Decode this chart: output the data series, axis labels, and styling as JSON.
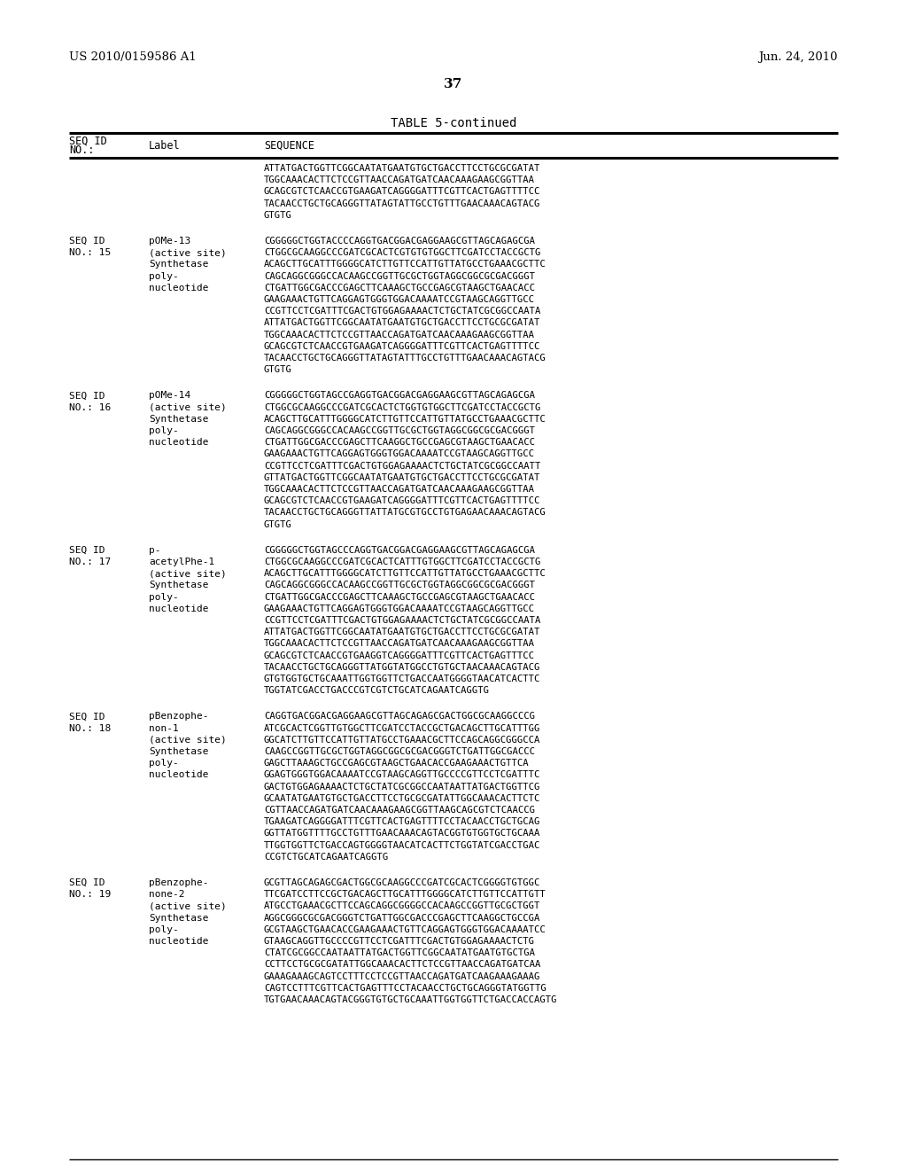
{
  "background_color": "#ffffff",
  "header_left": "US 2010/0159586 A1",
  "header_right": "Jun. 24, 2010",
  "page_number": "37",
  "table_title": "TABLE 5-continued",
  "entries": [
    {
      "seq_id": "",
      "no": "",
      "label_lines": [],
      "sequence_lines": [
        "ATTATGACTGGTTCGGCAATATGAATGTGCTGACCTTCCTGCGCGATAT",
        "TGGCAAACACTTCTCCGTTAACCAGATGATCAACAAAGAAGCGGTTAA",
        "GCAGCGTCTCAACCGTGAAGATCAGGGGATTTCGTTCACTGAGTTTTCC",
        "TACAACCTGCTGCAGGGTTATAGTATTGCCTGTTTGAACAAACAGTACG",
        "GTGTG"
      ]
    },
    {
      "seq_id": "SEQ ID",
      "no": "NO.: 15",
      "label_lines": [
        "pOMe-13",
        "(active site)",
        "Synthetase",
        "poly-",
        "nucleotide"
      ],
      "sequence_lines": [
        "CGGGGGCTGGTACCCCAGGTGACGGACGAGGAAGCGTTAGCAGAGCGA",
        "CTGGCGCAAGGCCCGATCGCACTCGTGTGTGGCTTCGATCCTACCGCTG",
        "ACAGCTTGCATTTGGGGCATCTTGTTCCATTGTTATGCCTGAAACGCTTC",
        "CAGCAGGCGGGCCACAAGCCGGTTGCGCTGGTAGGCGGCGCGACGGGT",
        "CTGATTGGCGACCCGAGCTTCAAAGCTGCCGAGCGTAAGCTGAACACC",
        "GAAGAAACTGTTCAGGAGTGGGTGGACAAAATCCGTAAGCAGGTTGCC",
        "CCGTTCCTCGATTTCGACTGTGGAGAAAACTCTGCTATCGCGGCCAATA",
        "ATTATGACTGGTTCGGCAATATGAATGTGCTGACCTTCCTGCGCGATAT",
        "TGGCAAACACTTCTCCGTTAACCAGATGATCAACAAAGAAGCGGTTAA",
        "GCAGCGTCTCAACCGTGAAGATCAGGGGATTTCGTTCACTGAGTTTTCC",
        "TACAACCTGCTGCAGGGTTATAGTATTTGCCTGTTTGAACAAACAGTACG",
        "GTGTG"
      ]
    },
    {
      "seq_id": "SEQ ID",
      "no": "NO.: 16",
      "label_lines": [
        "pOMe-14",
        "(active site)",
        "Synthetase",
        "poly-",
        "nucleotide"
      ],
      "sequence_lines": [
        "CGGGGGCTGGTAGCCGAGGTGACGGACGAGGAAGCGTTAGCAGAGCGA",
        "CTGGCGCAAGGCCCGATCGCACTCTGGTGTGGCTTCGATCCTACCGCTG",
        "ACAGCTTGCATTTGGGGCATCTTGTTCCATTGTTATGCCTGAAACGCTTC",
        "CAGCAGGCGGGCCACAAGCCGGTTGCGCTGGTAGGCGGCGCGACGGGT",
        "CTGATTGGCGACCCGAGCTTCAAGGCTGCCGAGCGTAAGCTGAACACC",
        "GAAGAAACTGTTCAGGAGTGGGTGGACAAAATCCGTAAGCAGGTTGCC",
        "CCGTTCCTCGATTTCGACTGTGGAGAAAACTCTGCTATCGCGGCCAATT",
        "GTTATGACTGGTTCGGCAATATGAATGTGCTGACCTTCCTGCGCGATAT",
        "TGGCAAACACTTCTCCGTTAACCAGATGATCAACAAAGAAGCGGTTAA",
        "GCAGCGTCTCAACCGTGAAGATCAGGGGATTTCGTTCACTGAGTTTTCC",
        "TACAACCTGCTGCAGGGTTATTATGCGTGCCTGTGAGAACAAACAGTACG",
        "GTGTG"
      ]
    },
    {
      "seq_id": "SEQ ID",
      "no": "NO.: 17",
      "label_lines": [
        "p-",
        "acetylPhe-1",
        "(active site)",
        "Synthetase",
        "poly-",
        "nucleotide"
      ],
      "sequence_lines": [
        "CGGGGGCTGGTAGCCCAGGTGACGGACGAGGAAGCGTTAGCAGAGCGA",
        "CTGGCGCAAGGCCCGATCGCACTCATTTGTGGCTTCGATCCTACCGCTG",
        "ACAGCTTGCATTTGGGGCATCTTGTTCCATTGTTATGCCTGAAACGCTTC",
        "CAGCAGGCGGGCCACAAGCCGGTTGCGCTGGTAGGCGGCGCGACGGGT",
        "CTGATTGGCGACCCGAGCTTCAAAGCTGCCGAGCGTAAGCTGAACACC",
        "GAAGAAACTGTTCAGGAGTGGGTGGACAAAATCCGTAAGCAGGTTGCC",
        "CCGTTCCTCGATTTCGACTGTGGAGAAAACTCTGCTATCGCGGCCAATA",
        "ATTATGACTGGTTCGGCAATATGAATGTGCTGACCTTCCTGCGCGATAT",
        "TGGCAAACACTTCTCCGTTAACCAGATGATCAACAAAGAAGCGGTTAA",
        "GCAGCGTCTCAACCGTGAAGGTCAGGGGATTTCGTTCACTGAGTTTCC",
        "TACAACCTGCTGCAGGGTTATGGTATGGCCTGTGCTAACAAACAGTACG",
        "GTGTGGTGCTGCAAATTGGTGGTTCTGACCAATGGGGTAACATCACTTC",
        "TGGTATCGACCTGACCCGTCGTCTGCATCAGAATCAGGTG"
      ]
    },
    {
      "seq_id": "SEQ ID",
      "no": "NO.: 18",
      "label_lines": [
        "pBenzophe-",
        "non-1",
        "(active site)",
        "Synthetase",
        "poly-",
        "nucleotide"
      ],
      "sequence_lines": [
        "CAGGTGACGGACGAGGAAGCGTTAGCAGAGCGACTGGCGCAAGGCCCG",
        "ATCGCACTCGGTTGTGGCTTCGATCCTACCGCTGACAGCTTGCATTTGG",
        "GGCATCTTGTTCCATTGTTATGCCTGAAACGCTTCCAGCAGGCGGGCCA",
        "CAAGCCGGTTGCGCTGGTAGGCGGCGCGACGGGTCTGATTGGCGACCC",
        "GAGCTTAAAGCTGCCGAGCGTAAGCTGAACACCGAAGAAACTGTTCA",
        "GGAGTGGGTGGACAAAATCCGTAAGCAGGTTGCCCCGTTCCTCGATTTC",
        "GACTGTGGAGAAAACTCTGCTATCGCGGCCAATAATTATGACTGGTTCG",
        "GCAATATGAATGTGCTGACCTTCCTGCGCGATATTGGCAAACACTTCTC",
        "CGTTAACCAGATGATCAACAAAGAAGCGGTTAAGCAGCGTCTCAACCG",
        "TGAAGATCAGGGGATTTCGTTCACTGAGTTTTCCTACAACCTGCTGCAG",
        "GGTTATGGTTTTGCCTGTTTGAACAAACAGTACGGTGTGGTGCTGCAAA",
        "TTGGTGGTTCTGACCAGTGGGGTAACATCACTTCTGGTATCGACCTGAC",
        "CCGTCTGCATCAGAATCAGGTG"
      ]
    },
    {
      "seq_id": "SEQ ID",
      "no": "NO.: 19",
      "label_lines": [
        "pBenzophe-",
        "none-2",
        "(active site)",
        "Synthetase",
        "poly-",
        "nucleotide"
      ],
      "sequence_lines": [
        "GCGTTAGCAGAGCGACTGGCGCAAGGCCCGATCGCACTCGGGGTGTGGC",
        "TTCGATCCTTCCGCTGACAGCTTGCATTTGGGGCATCTTGTTCCATTGTT",
        "ATGCCTGAAACGCTTCCAGCAGGCGGGGCCACAAGCCGGTTGCGCTGGT",
        "AGGCGGGCGCGACGGGTCTGATTGGCGACCCGAGCTTCAAGGCTGCCGA",
        "GCGTAAGCTGAACACCGAAGAAACTGTTCAGGAGTGGGTGGACAAAATCC",
        "GTAAGCAGGTTGCCCCGTTCCTCGATTTCGACTGTGGAGAAAACTCTG",
        "CTATCGCGGCCAATAATTATGACTGGTTCGGCAATATGAATGTGCTGA",
        "CCTTCCTGCGCGATATTGGCAAACACTTCTCCGTTAACCAGATGATCAA",
        "GAAAGAAAGCAGTCCTTTCCTCCGTTAACCAGATGATCAAGAAAGAAAG",
        "CAGTCCTTTCGTTCACTGAGTTTCCTACAACCTGCTGCAGGGTATGGTTG",
        "TGTGAACAAACAGTACGGGTGTGCTGCAAATTGGTGGTTCTGACCACCAGTG"
      ]
    }
  ]
}
